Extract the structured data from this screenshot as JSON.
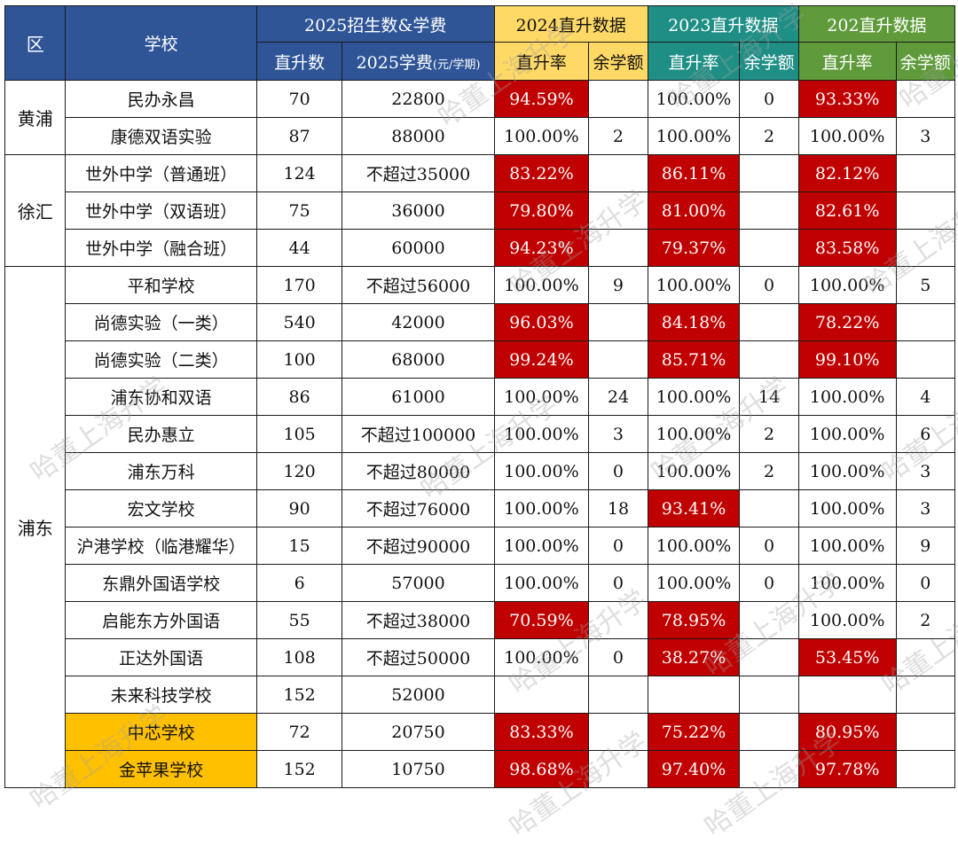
{
  "header": {
    "district": "区",
    "school": "学校",
    "group2025": "2025招生数&学费",
    "group2024": "2024直升数据",
    "group2023": "2023直升数据",
    "group202": "202直升数据",
    "direct_count": "直升数",
    "tuition_main": "2025学费",
    "tuition_unit": "(元/学期)",
    "rate": "直升率",
    "remaining": "余学额"
  },
  "districts": [
    {
      "name": "黄浦",
      "rows": 2
    },
    {
      "name": "徐汇",
      "rows": 3
    },
    {
      "name": "浦东",
      "rows": 14
    }
  ],
  "rows": [
    {
      "school": "民办永昌",
      "count": "70",
      "fee": "22800",
      "r24": "94.59%",
      "q24": "",
      "r23": "100.00%",
      "q23": "0",
      "r22": "93.33%",
      "q22": "",
      "red24": true,
      "red23": false,
      "red22": true
    },
    {
      "school": "康德双语实验",
      "count": "87",
      "fee": "88000",
      "r24": "100.00%",
      "q24": "2",
      "r23": "100.00%",
      "q23": "2",
      "r22": "100.00%",
      "q22": "3",
      "red24": false,
      "red23": false,
      "red22": false
    },
    {
      "school": "世外中学（普通班）",
      "count": "124",
      "fee": "不超过35000",
      "r24": "83.22%",
      "q24": "",
      "r23": "86.11%",
      "q23": "",
      "r22": "82.12%",
      "q22": "",
      "red24": true,
      "red23": true,
      "red22": true
    },
    {
      "school": "世外中学（双语班）",
      "count": "75",
      "fee": "36000",
      "r24": "79.80%",
      "q24": "",
      "r23": "81.00%",
      "q23": "",
      "r22": "82.61%",
      "q22": "",
      "red24": true,
      "red23": true,
      "red22": true
    },
    {
      "school": "世外中学（融合班）",
      "count": "44",
      "fee": "60000",
      "r24": "94.23%",
      "q24": "",
      "r23": "79.37%",
      "q23": "",
      "r22": "83.58%",
      "q22": "",
      "red24": true,
      "red23": true,
      "red22": true
    },
    {
      "school": "平和学校",
      "count": "170",
      "fee": "不超过56000",
      "r24": "100.00%",
      "q24": "9",
      "r23": "100.00%",
      "q23": "0",
      "r22": "100.00%",
      "q22": "5",
      "red24": false,
      "red23": false,
      "red22": false
    },
    {
      "school": "尚德实验（一类）",
      "count": "540",
      "fee": "42000",
      "r24": "96.03%",
      "q24": "",
      "r23": "84.18%",
      "q23": "",
      "r22": "78.22%",
      "q22": "",
      "red24": true,
      "red23": true,
      "red22": true
    },
    {
      "school": "尚德实验（二类）",
      "count": "100",
      "fee": "68000",
      "r24": "99.24%",
      "q24": "",
      "r23": "85.71%",
      "q23": "",
      "r22": "99.10%",
      "q22": "",
      "red24": true,
      "red23": true,
      "red22": true
    },
    {
      "school": "浦东协和双语",
      "count": "86",
      "fee": "61000",
      "r24": "100.00%",
      "q24": "24",
      "r23": "100.00%",
      "q23": "14",
      "r22": "100.00%",
      "q22": "4",
      "red24": false,
      "red23": false,
      "red22": false
    },
    {
      "school": "民办惠立",
      "count": "105",
      "fee": "不超过100000",
      "r24": "100.00%",
      "q24": "3",
      "r23": "100.00%",
      "q23": "2",
      "r22": "100.00%",
      "q22": "6",
      "red24": false,
      "red23": false,
      "red22": false
    },
    {
      "school": "浦东万科",
      "count": "120",
      "fee": "不超过80000",
      "r24": "100.00%",
      "q24": "0",
      "r23": "100.00%",
      "q23": "2",
      "r22": "100.00%",
      "q22": "3",
      "red24": false,
      "red23": false,
      "red22": false
    },
    {
      "school": "宏文学校",
      "count": "90",
      "fee": "不超过76000",
      "r24": "100.00%",
      "q24": "18",
      "r23": "93.41%",
      "q23": "",
      "r22": "100.00%",
      "q22": "3",
      "red24": false,
      "red23": true,
      "red22": false
    },
    {
      "school": "沪港学校（临港耀华）",
      "count": "15",
      "fee": "不超过90000",
      "r24": "100.00%",
      "q24": "0",
      "r23": "100.00%",
      "q23": "0",
      "r22": "100.00%",
      "q22": "9",
      "red24": false,
      "red23": false,
      "red22": false
    },
    {
      "school": "东鼎外国语学校",
      "count": "6",
      "fee": "57000",
      "r24": "100.00%",
      "q24": "0",
      "r23": "100.00%",
      "q23": "0",
      "r22": "100.00%",
      "q22": "0",
      "red24": false,
      "red23": false,
      "red22": false
    },
    {
      "school": "启能东方外国语",
      "count": "55",
      "fee": "不超过38000",
      "r24": "70.59%",
      "q24": "",
      "r23": "78.95%",
      "q23": "",
      "r22": "100.00%",
      "q22": "2",
      "red24": true,
      "red23": true,
      "red22": false
    },
    {
      "school": "正达外国语",
      "count": "108",
      "fee": "不超过50000",
      "r24": "100.00%",
      "q24": "0",
      "r23": "38.27%",
      "q23": "",
      "r22": "53.45%",
      "q22": "",
      "red24": false,
      "red23": true,
      "red22": true
    },
    {
      "school": "未来科技学校",
      "count": "152",
      "fee": "52000",
      "r24": "",
      "q24": "",
      "r23": "",
      "q23": "",
      "r22": "",
      "q22": "",
      "red24": false,
      "red23": false,
      "red22": false
    },
    {
      "school": "中芯学校",
      "count": "72",
      "fee": "20750",
      "r24": "83.33%",
      "q24": "",
      "r23": "75.22%",
      "q23": "",
      "r22": "80.95%",
      "q22": "",
      "red24": true,
      "red23": true,
      "red22": true,
      "highlight": true
    },
    {
      "school": "金苹果学校",
      "count": "152",
      "fee": "10750",
      "r24": "98.68%",
      "q24": "",
      "r23": "97.40%",
      "q23": "",
      "r22": "97.78%",
      "q22": "",
      "red24": true,
      "red23": true,
      "red22": true,
      "highlight": true
    }
  ],
  "watermark": "哈董上海升学",
  "colors": {
    "header_blue": "#2f5597",
    "header_yellow": "#ffd966",
    "header_teal": "#1f8f86",
    "header_green": "#5f9b3a",
    "alert_red": "#c00000",
    "highlight_orange": "#ffc000"
  }
}
